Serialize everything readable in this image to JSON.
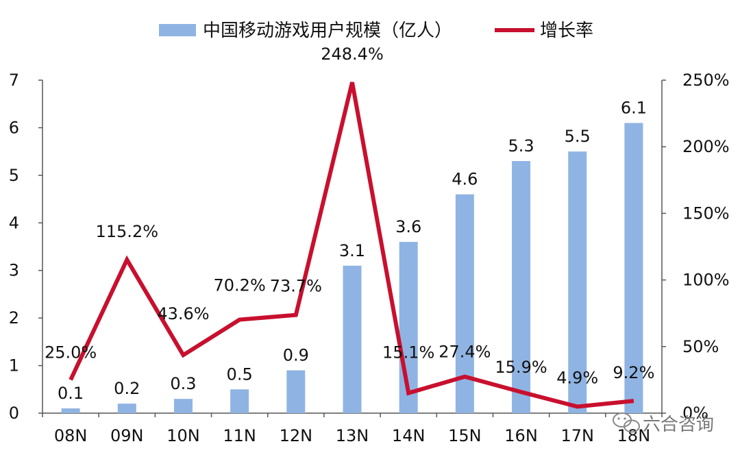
{
  "chart_data": {
    "type": "bar+line",
    "categories": [
      "08N",
      "09N",
      "10N",
      "11N",
      "12N",
      "13N",
      "14N",
      "15N",
      "16N",
      "17N",
      "18N"
    ],
    "series": [
      {
        "name": "中国移动游戏用户规模（亿人）",
        "type": "bar",
        "axis": "left",
        "color": "#8FB4E3",
        "values": [
          0.1,
          0.2,
          0.3,
          0.5,
          0.9,
          3.1,
          3.6,
          4.6,
          5.3,
          5.5,
          6.1
        ],
        "labels": [
          "0.1",
          "0.2",
          "0.3",
          "0.5",
          "0.9",
          "3.1",
          "3.6",
          "4.6",
          "5.3",
          "5.5",
          "6.1"
        ]
      },
      {
        "name": "增长率",
        "type": "line",
        "axis": "right",
        "color": "#C8102E",
        "values": [
          25.0,
          115.2,
          43.6,
          70.2,
          73.7,
          248.4,
          15.1,
          27.4,
          15.9,
          4.9,
          9.2
        ],
        "labels": [
          "25.0%",
          "115.2%",
          "43.6%",
          "70.2%",
          "73.7%",
          "248.4%",
          "15.1%",
          "27.4%",
          "15.9%",
          "4.9%",
          "9.2%"
        ]
      }
    ],
    "y_left": {
      "min": 0,
      "max": 7,
      "ticks": [
        "0",
        "1",
        "2",
        "3",
        "4",
        "5",
        "6",
        "7"
      ]
    },
    "y_right": {
      "min": 0,
      "max": 250,
      "ticks": [
        "0%",
        "50%",
        "100%",
        "150%",
        "200%",
        "250%"
      ]
    },
    "legend_position": "top",
    "grid": false
  },
  "watermark": {
    "text": "六合咨询",
    "icon": "wechat-icon"
  }
}
